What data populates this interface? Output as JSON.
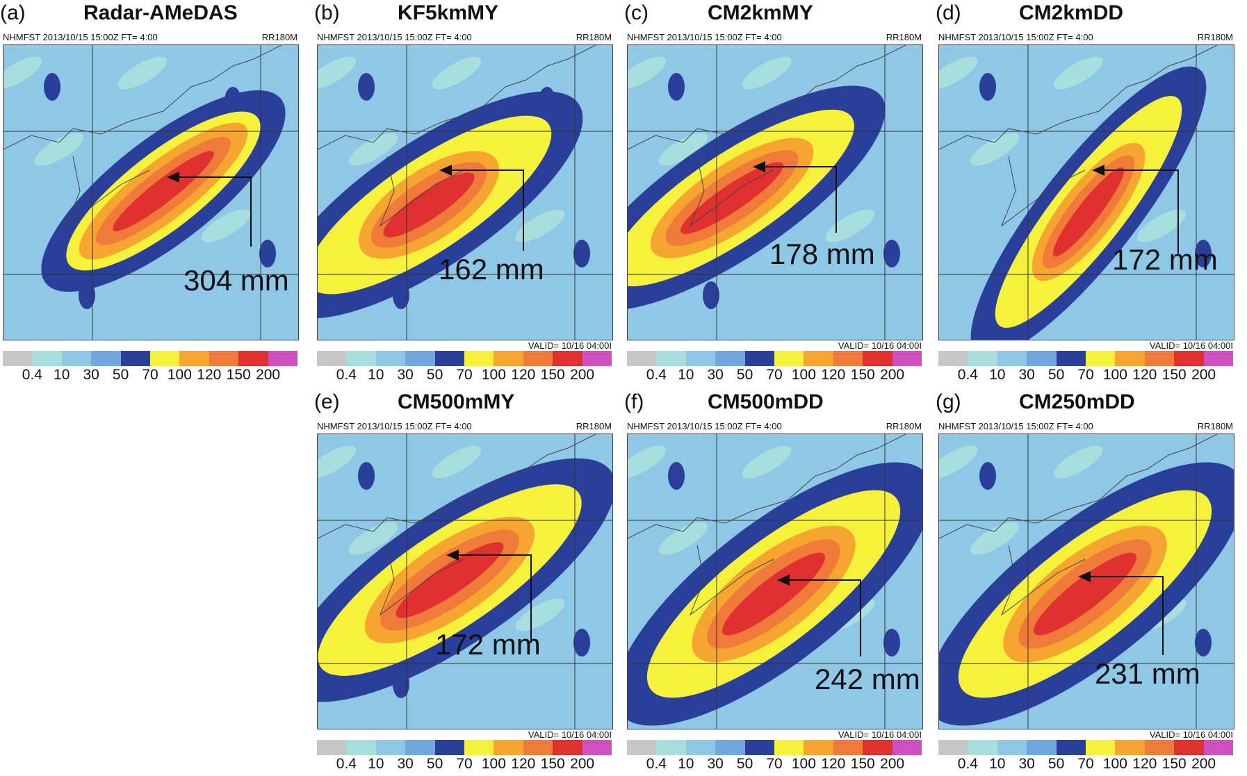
{
  "panels": [
    {
      "label": "(a)",
      "title": "Radar-AMeDAS",
      "header": "NHMFST 2013/10/15 15:00Z FT=  4:00",
      "code": "RR180M",
      "valid": "",
      "annotation": "304 mm"
    },
    {
      "label": "(b)",
      "title": "KF5kmMY",
      "header": "NHMFST 2013/10/15 15:00Z FT=  4:00",
      "code": "RR180M",
      "valid": "VALID= 10/16 04:00I",
      "annotation": "162 mm"
    },
    {
      "label": "(c)",
      "title": "CM2kmMY",
      "header": "NHMFST 2013/10/15 15:00Z FT=  4:00",
      "code": "RR180M",
      "valid": "VALID= 10/16 04:00I",
      "annotation": "178 mm"
    },
    {
      "label": "(d)",
      "title": "CM2kmDD",
      "header": "NHMFST 2013/10/15 15:00Z FT=  4:00",
      "code": "RR180M",
      "valid": "VALID= 10/16 04:00I",
      "annotation": "172 mm"
    },
    {
      "label": "(e)",
      "title": "CM500mMY",
      "header": "NHMFST 2013/10/15 15:00Z FT=  4:00",
      "code": "RR180M",
      "valid": "VALID= 10/16 04:00I",
      "annotation": "172 mm"
    },
    {
      "label": "(f)",
      "title": "CM500mDD",
      "header": "NHMFST 2013/10/15 15:00Z FT=  4:00",
      "code": "RR180M",
      "valid": "VALID= 10/16 04:00I",
      "annotation": "242 mm"
    },
    {
      "label": "(g)",
      "title": "CM250mDD",
      "header": "NHMFST 2013/10/15 15:00Z FT=  4:00",
      "code": "RR180M",
      "valid": "VALID= 10/16 04:00I",
      "annotation": "231 mm"
    }
  ],
  "colorbar": {
    "ticks": [
      "0.4",
      "10",
      "30",
      "50",
      "70",
      "100",
      "120",
      "150",
      "200"
    ],
    "colors": [
      "#c8c8c8",
      "#a8dede",
      "#8ec8e6",
      "#6fa8dc",
      "#2a3f9a",
      "#f6f23c",
      "#f6a531",
      "#f07a3a",
      "#e03030",
      "#d050c0"
    ]
  }
}
